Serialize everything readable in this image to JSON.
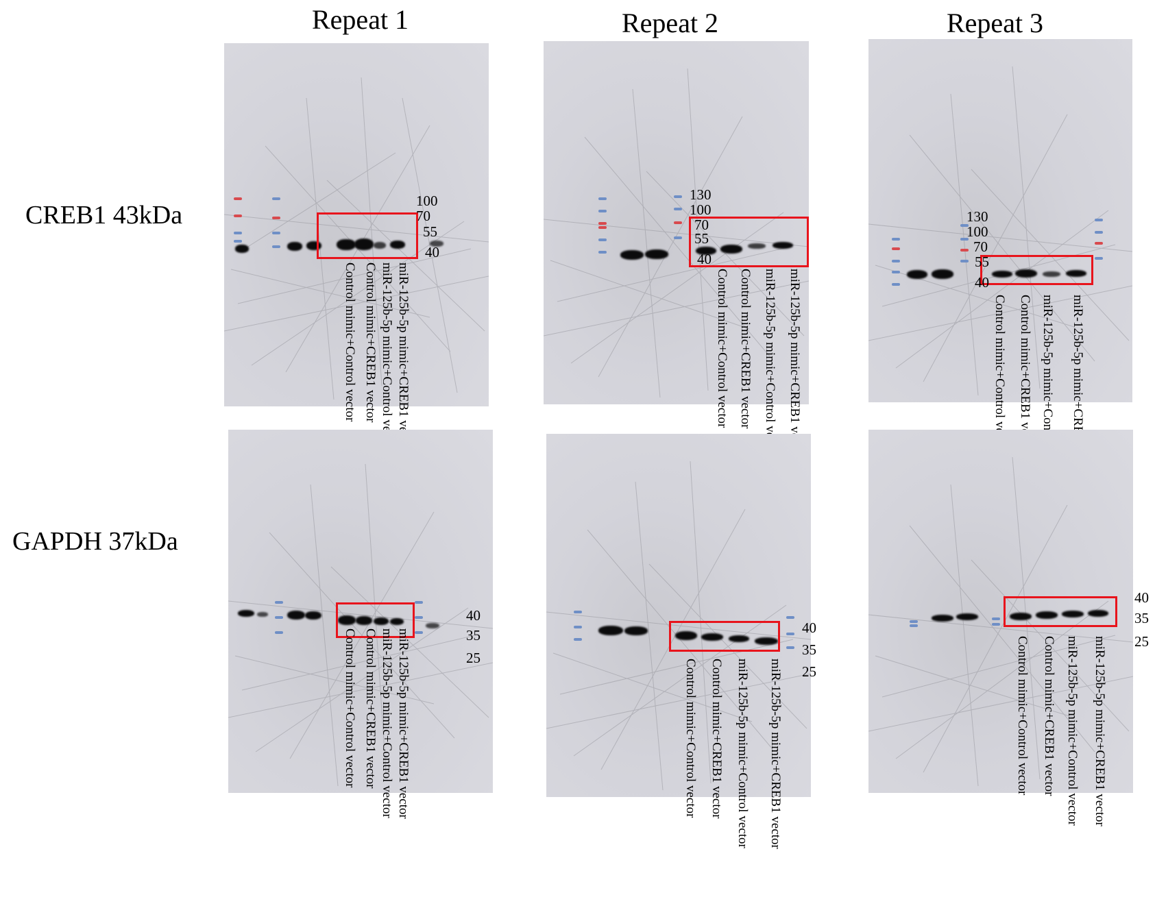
{
  "repeats": [
    "Repeat 1",
    "Repeat 2",
    "Repeat 3"
  ],
  "rows": [
    "CREB1 43kDa",
    "GAPDH 37kDa"
  ],
  "lanes": [
    "Control mimic+Control vector",
    "Control mimic+CREB1 vector",
    "miR-125b-5p mimic+Control vector",
    "miR-125b-5p mimic+CREB1 vector"
  ],
  "markers": {
    "creb_r1": [
      "100",
      "70",
      "55",
      "40"
    ],
    "creb_r2": [
      "130",
      "100",
      "70",
      "55",
      "40"
    ],
    "creb_r3": [
      "130",
      "100",
      "70",
      "55",
      "40"
    ],
    "gapdh_r1": [
      "40",
      "35",
      "25"
    ],
    "gapdh_r2": [
      "40",
      "35",
      "25"
    ],
    "gapdh_r3": [
      "40",
      "35",
      "25"
    ]
  },
  "colors": {
    "highlight_box": "#e8141c",
    "membrane": "#d6d6dc",
    "band": "#0b0b0c"
  }
}
